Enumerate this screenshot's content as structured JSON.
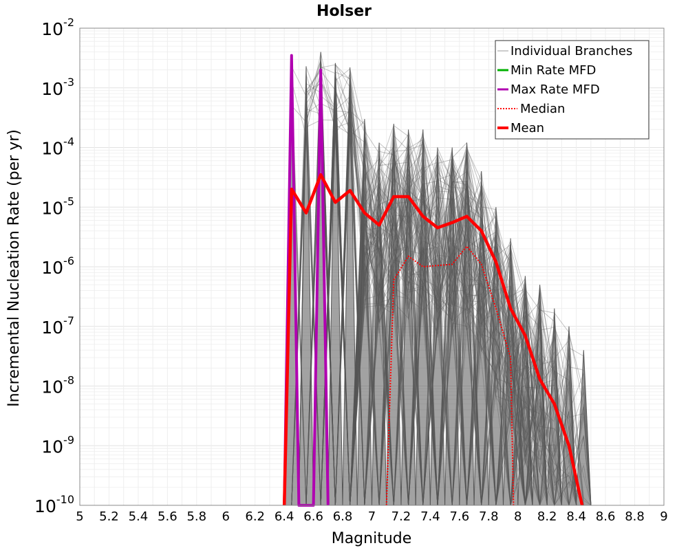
{
  "chart_data": {
    "type": "line",
    "title": "Holser",
    "xlabel": "Magnitude",
    "ylabel": "Incremental Nucleation Rate (per yr)",
    "y_scale": "log",
    "xlim": [
      5,
      9
    ],
    "ylim": [
      1e-10,
      0.01
    ],
    "x_ticks": [
      "5",
      "5.2",
      "5.4",
      "5.6",
      "5.8",
      "6",
      "6.2",
      "6.4",
      "6.6",
      "6.8",
      "7",
      "7.2",
      "7.4",
      "7.6",
      "7.8",
      "8",
      "8.2",
      "8.4",
      "8.6",
      "8.8",
      "9"
    ],
    "y_ticks": [
      {
        "base": "10",
        "exp": "-10"
      },
      {
        "base": "10",
        "exp": "-9"
      },
      {
        "base": "10",
        "exp": "-8"
      },
      {
        "base": "10",
        "exp": "-7"
      },
      {
        "base": "10",
        "exp": "-6"
      },
      {
        "base": "10",
        "exp": "-5"
      },
      {
        "base": "10",
        "exp": "-4"
      },
      {
        "base": "10",
        "exp": "-3"
      },
      {
        "base": "10",
        "exp": "-2"
      }
    ],
    "grid": true,
    "legend_position": "top-right",
    "colors": {
      "individual": "#555555",
      "min": "#00b000",
      "max": "#b000b0",
      "median": "#ff0000",
      "mean": "#ff0000"
    },
    "series": [
      {
        "name": "Individual Branches",
        "style": "thin gray, many overlapping lines",
        "peak_values": [
          {
            "x": 6.45,
            "y": 0.0035
          },
          {
            "x": 6.55,
            "y": 0.0023
          },
          {
            "x": 6.65,
            "y": 0.004
          },
          {
            "x": 6.75,
            "y": 0.0026
          },
          {
            "x": 6.85,
            "y": 0.0022
          },
          {
            "x": 6.95,
            "y": 0.0003
          },
          {
            "x": 7.05,
            "y": 0.00012
          },
          {
            "x": 7.15,
            "y": 0.00025
          },
          {
            "x": 7.25,
            "y": 0.0002
          },
          {
            "x": 7.35,
            "y": 0.0002
          },
          {
            "x": 7.45,
            "y": 0.0001
          },
          {
            "x": 7.55,
            "y": 0.0001
          },
          {
            "x": 7.65,
            "y": 0.00012
          },
          {
            "x": 7.75,
            "y": 4e-05
          },
          {
            "x": 7.85,
            "y": 1e-05
          },
          {
            "x": 7.95,
            "y": 3e-06
          },
          {
            "x": 8.05,
            "y": 7e-07
          },
          {
            "x": 8.15,
            "y": 5e-07
          },
          {
            "x": 8.25,
            "y": 2e-07
          },
          {
            "x": 8.35,
            "y": 1e-07
          },
          {
            "x": 8.45,
            "y": 4e-08
          }
        ]
      },
      {
        "name": "Min Rate MFD",
        "style": "green solid",
        "x": [],
        "y": []
      },
      {
        "name": "Max Rate MFD",
        "style": "purple solid",
        "x": [
          6.4,
          6.45,
          6.5,
          6.6,
          6.65,
          6.7
        ],
        "y": [
          1e-10,
          0.0035,
          1e-10,
          1e-10,
          0.002,
          1e-10
        ]
      },
      {
        "name": "Median",
        "style": "red dotted",
        "x": [
          7.1,
          7.15,
          7.25,
          7.35,
          7.45,
          7.55,
          7.65,
          7.75,
          7.85,
          7.95,
          7.97
        ],
        "y": [
          1e-10,
          6e-07,
          1.5e-06,
          1e-06,
          1.05e-06,
          1.1e-06,
          2.2e-06,
          1.1e-06,
          2e-07,
          3e-08,
          1e-10
        ]
      },
      {
        "name": "Mean",
        "style": "red thick solid",
        "x": [
          6.4,
          6.45,
          6.55,
          6.65,
          6.75,
          6.85,
          6.95,
          7.05,
          7.15,
          7.25,
          7.35,
          7.45,
          7.55,
          7.65,
          7.75,
          7.85,
          7.95,
          8.05,
          8.15,
          8.25,
          8.35,
          8.44
        ],
        "y": [
          1e-10,
          2e-05,
          8e-06,
          3.5e-05,
          1.2e-05,
          1.9e-05,
          8e-06,
          5e-06,
          1.5e-05,
          1.5e-05,
          7e-06,
          4.5e-06,
          5.5e-06,
          7e-06,
          4e-06,
          1.2e-06,
          2e-07,
          7e-08,
          1.3e-08,
          5e-09,
          1e-09,
          1e-10
        ]
      }
    ]
  }
}
